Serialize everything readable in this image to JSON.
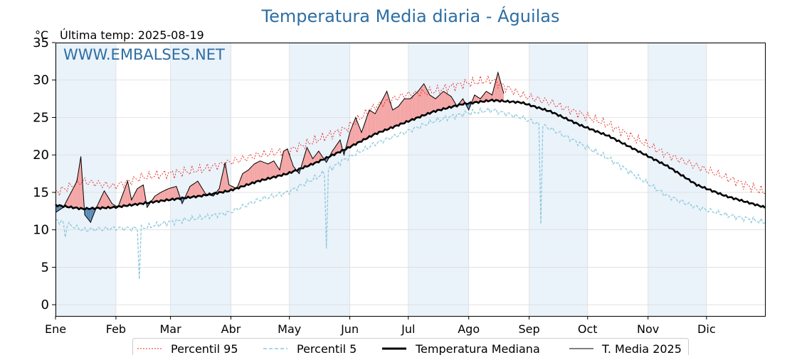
{
  "chart_data": {
    "type": "line",
    "title": "Temperatura Media diaria - Águilas",
    "unit_label": "°C",
    "last_temp_label": "Última temp: 2025-08-19",
    "watermark": "WWW.EMBALSES.NET",
    "ylim": [
      -1.5,
      35
    ],
    "yticks": [
      0,
      5,
      10,
      15,
      20,
      25,
      30,
      35
    ],
    "month_labels": [
      "Ene",
      "Feb",
      "Mar",
      "Abr",
      "May",
      "Jun",
      "Jul",
      "Ago",
      "Sep",
      "Oct",
      "Nov",
      "Dic"
    ],
    "month_start_days": [
      1,
      32,
      60,
      91,
      121,
      152,
      182,
      213,
      244,
      274,
      305,
      335
    ],
    "grid": true,
    "legend_position": "bottom",
    "colors": {
      "p95": "#e8271f",
      "p5": "#8ec9dc",
      "median": "#000000",
      "year": "#000000",
      "above_fill": "#f4a5a5",
      "below_fill": "#5b8db8",
      "month_band": "#eaf2fa",
      "title": "#2c6ea3"
    },
    "series": [
      {
        "name": "Percentil 95",
        "key": "p95",
        "anchors": [
          [
            1,
            15.0
          ],
          [
            15,
            16.5
          ],
          [
            31,
            15.8
          ],
          [
            45,
            17.0
          ],
          [
            59,
            17.5
          ],
          [
            75,
            18.0
          ],
          [
            90,
            19.0
          ],
          [
            105,
            20.0
          ],
          [
            120,
            20.5
          ],
          [
            135,
            22.0
          ],
          [
            150,
            23.5
          ],
          [
            165,
            26.5
          ],
          [
            180,
            28.0
          ],
          [
            195,
            28.5
          ],
          [
            210,
            29.5
          ],
          [
            225,
            30.0
          ],
          [
            240,
            28.0
          ],
          [
            255,
            27.0
          ],
          [
            270,
            25.5
          ],
          [
            285,
            24.0
          ],
          [
            300,
            22.0
          ],
          [
            315,
            20.0
          ],
          [
            330,
            18.5
          ],
          [
            345,
            17.0
          ],
          [
            365,
            15.0
          ]
        ]
      },
      {
        "name": "Percentil 5",
        "key": "p5",
        "anchors": [
          [
            1,
            11.3
          ],
          [
            15,
            10.0
          ],
          [
            31,
            10.2
          ],
          [
            45,
            10.2
          ],
          [
            59,
            11.0
          ],
          [
            75,
            11.6
          ],
          [
            90,
            12.3
          ],
          [
            105,
            14.0
          ],
          [
            120,
            15.0
          ],
          [
            135,
            17.0
          ],
          [
            150,
            19.5
          ],
          [
            165,
            21.5
          ],
          [
            180,
            23.0
          ],
          [
            195,
            24.5
          ],
          [
            210,
            25.5
          ],
          [
            225,
            26.0
          ],
          [
            240,
            25.0
          ],
          [
            255,
            23.5
          ],
          [
            270,
            21.5
          ],
          [
            285,
            19.5
          ],
          [
            300,
            17.0
          ],
          [
            315,
            14.5
          ],
          [
            330,
            13.0
          ],
          [
            345,
            12.0
          ],
          [
            365,
            11.0
          ]
        ],
        "spikes": [
          [
            6,
            9.0
          ],
          [
            44,
            3.4
          ],
          [
            140,
            7.5
          ],
          [
            250,
            10.8
          ]
        ]
      },
      {
        "name": "Temperatura Mediana",
        "key": "median",
        "anchors": [
          [
            1,
            13.3
          ],
          [
            15,
            12.8
          ],
          [
            31,
            13.0
          ],
          [
            45,
            13.5
          ],
          [
            59,
            14.0
          ],
          [
            75,
            14.5
          ],
          [
            90,
            15.2
          ],
          [
            105,
            16.5
          ],
          [
            120,
            17.5
          ],
          [
            135,
            19.0
          ],
          [
            150,
            20.8
          ],
          [
            165,
            22.8
          ],
          [
            180,
            24.3
          ],
          [
            195,
            25.8
          ],
          [
            210,
            26.8
          ],
          [
            225,
            27.3
          ],
          [
            240,
            27.0
          ],
          [
            255,
            25.8
          ],
          [
            270,
            24.0
          ],
          [
            285,
            22.5
          ],
          [
            300,
            20.5
          ],
          [
            315,
            18.5
          ],
          [
            330,
            16.0
          ],
          [
            345,
            14.5
          ],
          [
            365,
            13.0
          ]
        ]
      },
      {
        "name": "T. Media 2025",
        "key": "year",
        "last_day": 231,
        "anchors": [
          [
            1,
            12.3
          ],
          [
            5,
            13.0
          ],
          [
            8,
            14.5
          ],
          [
            12,
            16.5
          ],
          [
            14,
            19.8
          ],
          [
            16,
            12.0
          ],
          [
            19,
            11.0
          ],
          [
            22,
            13.0
          ],
          [
            26,
            15.2
          ],
          [
            30,
            13.5
          ],
          [
            33,
            13.0
          ],
          [
            38,
            16.5
          ],
          [
            40,
            14.0
          ],
          [
            43,
            15.5
          ],
          [
            46,
            16.0
          ],
          [
            48,
            13.0
          ],
          [
            52,
            14.5
          ],
          [
            55,
            15.0
          ],
          [
            59,
            15.5
          ],
          [
            63,
            15.8
          ],
          [
            66,
            13.5
          ],
          [
            70,
            15.8
          ],
          [
            74,
            16.5
          ],
          [
            78,
            14.8
          ],
          [
            82,
            14.5
          ],
          [
            85,
            15.5
          ],
          [
            88,
            19.0
          ],
          [
            90,
            16.0
          ],
          [
            94,
            15.5
          ],
          [
            97,
            17.5
          ],
          [
            100,
            18.0
          ],
          [
            103,
            18.8
          ],
          [
            106,
            19.2
          ],
          [
            110,
            18.8
          ],
          [
            113,
            19.2
          ],
          [
            116,
            18.0
          ],
          [
            118,
            20.5
          ],
          [
            120,
            20.8
          ],
          [
            123,
            18.5
          ],
          [
            126,
            17.5
          ],
          [
            130,
            21.0
          ],
          [
            133,
            19.5
          ],
          [
            136,
            20.5
          ],
          [
            140,
            19.0
          ],
          [
            143,
            20.5
          ],
          [
            147,
            22.0
          ],
          [
            149,
            20.0
          ],
          [
            152,
            23.0
          ],
          [
            155,
            25.0
          ],
          [
            158,
            23.0
          ],
          [
            162,
            26.0
          ],
          [
            165,
            25.5
          ],
          [
            168,
            27.0
          ],
          [
            171,
            28.5
          ],
          [
            174,
            26.0
          ],
          [
            177,
            26.5
          ],
          [
            180,
            27.5
          ],
          [
            183,
            27.5
          ],
          [
            187,
            28.5
          ],
          [
            190,
            29.5
          ],
          [
            193,
            28.0
          ],
          [
            196,
            27.5
          ],
          [
            200,
            28.5
          ],
          [
            204,
            27.8
          ],
          [
            207,
            26.5
          ],
          [
            210,
            27.5
          ],
          [
            213,
            26.0
          ],
          [
            216,
            28.0
          ],
          [
            219,
            27.5
          ],
          [
            222,
            28.5
          ],
          [
            225,
            28.0
          ],
          [
            228,
            31.0
          ],
          [
            231,
            28.2
          ]
        ]
      }
    ]
  },
  "legend": [
    {
      "key": "p95",
      "label": "Percentil 95"
    },
    {
      "key": "p5",
      "label": "Percentil 5"
    },
    {
      "key": "median",
      "label": "Temperatura Mediana"
    },
    {
      "key": "year",
      "label": "T. Media 2025"
    }
  ]
}
